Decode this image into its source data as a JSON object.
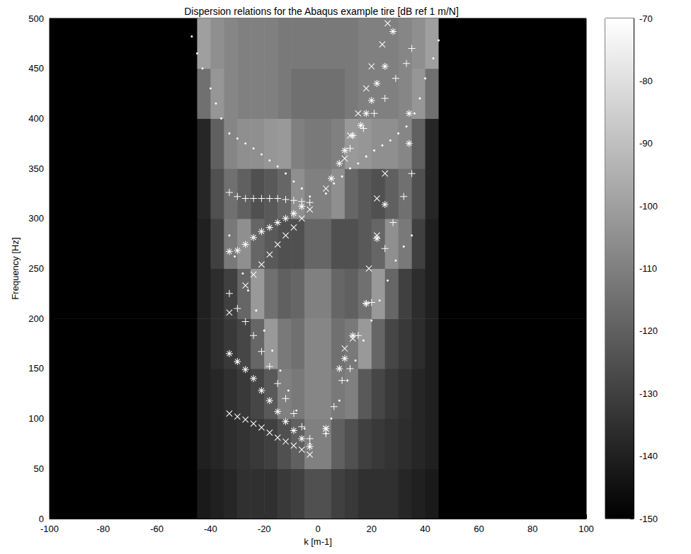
{
  "chart_data": {
    "type": "heatmap",
    "title": "Dispersion relations for the Abaqus example tire [dB ref 1 m/N]",
    "x_label": "k [m-1]",
    "y_label": "Frequency [Hz]",
    "xlim": [
      -100,
      100
    ],
    "xticks": [
      -100,
      -80,
      -60,
      -40,
      -20,
      0,
      20,
      40,
      60,
      80,
      100
    ],
    "ylim": [
      0,
      500
    ],
    "yticks": [
      0,
      50,
      100,
      150,
      200,
      250,
      300,
      350,
      400,
      450,
      500
    ],
    "grid": false,
    "heatmap": {
      "k_edges": [
        -100,
        -50,
        -45,
        -40,
        -35,
        -30,
        -25,
        -20,
        -15,
        -10,
        -5,
        0,
        5,
        10,
        15,
        20,
        25,
        30,
        35,
        40,
        45,
        50,
        100
      ],
      "f_edges": [
        0,
        50,
        100,
        150,
        200,
        250,
        300,
        350,
        400,
        450,
        500
      ],
      "cells": [
        [
          -150,
          -150,
          -142,
          -140,
          -138,
          -135,
          -135,
          -135,
          -132,
          -130,
          -125,
          -125,
          -130,
          -132,
          -135,
          -135,
          -135,
          -138,
          -140,
          -142,
          -150,
          -150
        ],
        [
          -150,
          -150,
          -140,
          -138,
          -136,
          -134,
          -132,
          -130,
          -125,
          -120,
          -110,
          -110,
          -120,
          -125,
          -130,
          -132,
          -134,
          -136,
          -138,
          -140,
          -150,
          -150
        ],
        [
          -150,
          -150,
          -140,
          -138,
          -135,
          -132,
          -128,
          -122,
          -110,
          -112,
          -108,
          -108,
          -112,
          -110,
          -122,
          -128,
          -132,
          -135,
          -138,
          -140,
          -150,
          -150
        ],
        [
          -150,
          -150,
          -140,
          -136,
          -132,
          -128,
          -118,
          -102,
          -112,
          -115,
          -108,
          -108,
          -115,
          -112,
          -102,
          -118,
          -128,
          -132,
          -136,
          -140,
          -150,
          -150
        ],
        [
          -150,
          -150,
          -140,
          -136,
          -130,
          -118,
          -102,
          -115,
          -120,
          -118,
          -110,
          -110,
          -118,
          -120,
          -115,
          -102,
          -118,
          -130,
          -136,
          -140,
          -150,
          -150
        ],
        [
          -150,
          -150,
          -140,
          -130,
          -112,
          -105,
          -118,
          -122,
          -125,
          -125,
          -118,
          -118,
          -125,
          -125,
          -122,
          -118,
          -105,
          -112,
          -130,
          -140,
          -150,
          -150
        ],
        [
          -150,
          -150,
          -138,
          -125,
          -115,
          -120,
          -125,
          -122,
          -118,
          -105,
          -110,
          -110,
          -105,
          -118,
          -122,
          -125,
          -120,
          -115,
          -125,
          -138,
          -150,
          -150
        ],
        [
          -150,
          -150,
          -138,
          -120,
          -108,
          -105,
          -105,
          -103,
          -102,
          -110,
          -112,
          -112,
          -110,
          -102,
          -103,
          -105,
          -105,
          -108,
          -120,
          -138,
          -150,
          -150
        ],
        [
          -150,
          -150,
          -115,
          -103,
          -108,
          -110,
          -110,
          -110,
          -112,
          -115,
          -115,
          -115,
          -115,
          -112,
          -110,
          -110,
          -110,
          -108,
          -103,
          -115,
          -150,
          -150
        ],
        [
          -150,
          -150,
          -100,
          -105,
          -108,
          -110,
          -110,
          -110,
          -112,
          -112,
          -112,
          -112,
          -112,
          -112,
          -110,
          -110,
          -110,
          -108,
          -105,
          -100,
          -150,
          -150
        ]
      ]
    },
    "colorbar": {
      "range": [
        -150,
        -70
      ],
      "ticks": [
        -150,
        -140,
        -130,
        -120,
        -110,
        -100,
        -90,
        -80,
        -70
      ],
      "colors": [
        "#000000",
        "#ffffff"
      ]
    },
    "series": [
      {
        "type": "scatter",
        "marker": "point",
        "color": "#ffffff",
        "x": [
          -3,
          -5,
          -8,
          -11,
          -14,
          -17,
          -20,
          -23,
          -26,
          -28,
          -31,
          -33,
          -3,
          -6,
          -9,
          -12,
          -15,
          -18,
          -21,
          -24,
          -27,
          -30,
          -33,
          -36,
          -38,
          -40,
          -43,
          -45,
          -47,
          3,
          5,
          8,
          11,
          14,
          17,
          20,
          23,
          26,
          29,
          32,
          35,
          3,
          6,
          9,
          12,
          15,
          18,
          21,
          24,
          27,
          30,
          33,
          36,
          38,
          40,
          43,
          45
        ],
        "values": [
          75,
          90,
          108,
          128,
          148,
          168,
          188,
          208,
          228,
          245,
          262,
          283,
          322,
          330,
          337,
          345,
          352,
          358,
          364,
          370,
          375,
          380,
          385,
          400,
          415,
          430,
          450,
          465,
          482,
          85,
          100,
          118,
          138,
          158,
          178,
          198,
          218,
          238,
          258,
          272,
          283,
          325,
          335,
          342,
          350,
          355,
          362,
          368,
          373,
          378,
          385,
          392,
          405,
          420,
          440,
          460,
          478
        ]
      },
      {
        "type": "scatter",
        "marker": "x",
        "color": "#ffffff",
        "x": [
          -33,
          -30,
          -27,
          -24,
          -21,
          -18,
          -15,
          -12,
          -9,
          -6,
          -3,
          -33,
          -27,
          -24,
          -21,
          -18,
          -15,
          -12,
          -9,
          -6,
          -3,
          3,
          10,
          13,
          19,
          22,
          22,
          3,
          10,
          12,
          15,
          18,
          20,
          24,
          26,
          25
        ],
        "values": [
          105,
          102,
          99,
          95,
          91,
          86,
          81,
          77,
          73,
          69,
          64,
          206,
          233,
          244,
          254,
          264,
          274,
          283,
          291,
          300,
          309,
          90,
          170,
          180,
          250,
          283,
          320,
          330,
          360,
          383,
          405,
          430,
          452,
          474,
          495,
          345
        ]
      },
      {
        "type": "scatter",
        "marker": "plus",
        "color": "#ffffff",
        "x": [
          -33,
          -30,
          -27,
          -24,
          -21,
          -18,
          -15,
          -12,
          -9,
          -6,
          -3,
          -33,
          -30,
          -27,
          -24,
          -21,
          -18,
          -15,
          -12,
          -9,
          -6,
          -3,
          3,
          6,
          9,
          12,
          15,
          18,
          20,
          25,
          28,
          32,
          35,
          12,
          17,
          21,
          25,
          29,
          33,
          35
        ],
        "values": [
          326,
          322,
          320,
          320,
          320,
          320,
          320,
          319,
          318,
          317,
          316,
          225,
          210,
          197,
          183,
          167,
          152,
          135,
          120,
          105,
          92,
          80,
          85,
          112,
          138,
          150,
          183,
          215,
          216,
          270,
          296,
          322,
          345,
          370,
          390,
          405,
          420,
          440,
          455,
          470
        ]
      },
      {
        "type": "scatter",
        "marker": "star",
        "color": "#ffffff",
        "x": [
          -33,
          -30,
          -27,
          -24,
          -21,
          -18,
          -15,
          -12,
          -9,
          -6,
          -3,
          -33,
          -30,
          -27,
          -24,
          -21,
          -18,
          -15,
          -12,
          -9,
          -6,
          3,
          8,
          10,
          13,
          18,
          22,
          25,
          34,
          34,
          5,
          8,
          10,
          13,
          16,
          18,
          20,
          22,
          25,
          28
        ],
        "values": [
          165,
          157,
          149,
          140,
          128,
          118,
          107,
          97,
          88,
          80,
          72,
          267,
          268,
          274,
          281,
          287,
          291,
          296,
          300,
          305,
          312,
          90,
          150,
          160,
          183,
          215,
          280,
          314,
          375,
          405,
          340,
          355,
          368,
          383,
          393,
          405,
          418,
          435,
          452,
          487
        ]
      }
    ]
  }
}
